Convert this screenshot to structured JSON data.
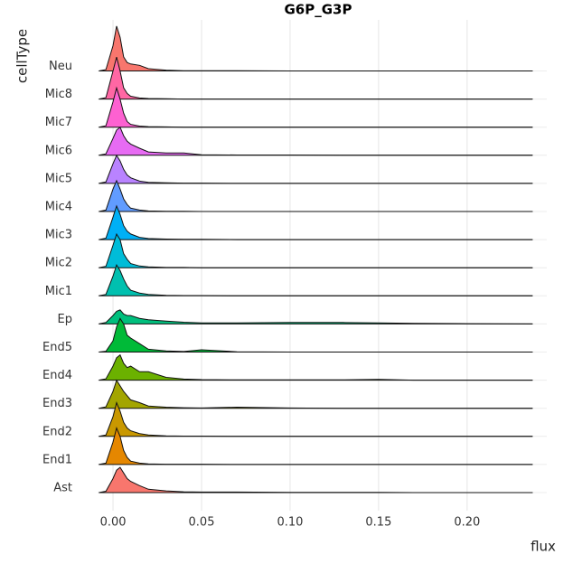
{
  "chart_data": {
    "type": "ridgeline",
    "title": "G6P_G3P",
    "x_label": "flux",
    "y_label": "cellType",
    "categories": [
      "Ast",
      "End1",
      "End2",
      "End3",
      "End4",
      "End5",
      "Ep",
      "Mic1",
      "Mic2",
      "Mic3",
      "Mic4",
      "Mic5",
      "Mic6",
      "Mic7",
      "Mic8",
      "Neu"
    ],
    "x": [
      -0.008,
      -0.004,
      0,
      0.002,
      0.004,
      0.006,
      0.008,
      0.01,
      0.015,
      0.02,
      0.03,
      0.04,
      0.05,
      0.07,
      0.1,
      0.13,
      0.15,
      0.17,
      0.2,
      0.237
    ],
    "series": [
      {
        "color": "#F8766D",
        "values": [
          0,
          0.05,
          0.5,
          0.8,
          0.9,
          0.7,
          0.5,
          0.4,
          0.25,
          0.12,
          0.06,
          0.03,
          0.02,
          0.02,
          0.01,
          0.01,
          0.01,
          0,
          0,
          0
        ]
      },
      {
        "color": "#E58700",
        "values": [
          0,
          0.05,
          0.8,
          1.3,
          1.0,
          0.5,
          0.25,
          0.12,
          0.05,
          0.02,
          0.01,
          0.01,
          0.01,
          0,
          0,
          0,
          0,
          0,
          0,
          0
        ]
      },
      {
        "color": "#C99800",
        "values": [
          0,
          0.05,
          0.7,
          1.2,
          0.9,
          0.5,
          0.3,
          0.2,
          0.1,
          0.05,
          0.02,
          0.01,
          0.01,
          0,
          0,
          0,
          0,
          0,
          0,
          0
        ]
      },
      {
        "color": "#A3A500",
        "values": [
          0,
          0.05,
          0.6,
          1.0,
          0.8,
          0.6,
          0.45,
          0.3,
          0.2,
          0.08,
          0.04,
          0.02,
          0.01,
          0.04,
          0.01,
          0,
          0,
          0,
          0,
          0
        ]
      },
      {
        "color": "#6BB100",
        "values": [
          0,
          0.05,
          0.5,
          0.8,
          0.9,
          0.6,
          0.45,
          0.5,
          0.3,
          0.3,
          0.1,
          0.04,
          0.02,
          0.01,
          0.01,
          0.01,
          0.03,
          0,
          0,
          0
        ]
      },
      {
        "color": "#00BA38",
        "values": [
          0,
          0.03,
          0.4,
          0.9,
          1.2,
          1.0,
          0.6,
          0.5,
          0.3,
          0.1,
          0.04,
          0.02,
          0.08,
          0.01,
          0,
          0,
          0,
          0,
          0,
          0
        ]
      },
      {
        "color": "#00BF7D",
        "values": [
          0,
          0.05,
          0.3,
          0.45,
          0.5,
          0.35,
          0.3,
          0.3,
          0.2,
          0.15,
          0.1,
          0.06,
          0.04,
          0.04,
          0.05,
          0.05,
          0.04,
          0.02,
          0.01,
          0
        ]
      },
      {
        "color": "#00C0AF",
        "values": [
          0,
          0.05,
          0.7,
          1.1,
          0.9,
          0.6,
          0.35,
          0.2,
          0.1,
          0.05,
          0.02,
          0.01,
          0.01,
          0,
          0,
          0,
          0,
          0,
          0,
          0
        ]
      },
      {
        "color": "#00BCD8",
        "values": [
          0,
          0.05,
          0.8,
          1.2,
          1.0,
          0.5,
          0.3,
          0.15,
          0.06,
          0.03,
          0.01,
          0.01,
          0,
          0,
          0,
          0,
          0,
          0,
          0,
          0
        ]
      },
      {
        "color": "#00B0F6",
        "values": [
          0,
          0.05,
          0.8,
          1.2,
          0.9,
          0.5,
          0.3,
          0.2,
          0.08,
          0.04,
          0.02,
          0.01,
          0.01,
          0,
          0,
          0,
          0,
          0,
          0,
          0
        ]
      },
      {
        "color": "#619CFF",
        "values": [
          0,
          0.05,
          0.8,
          1.1,
          0.8,
          0.45,
          0.25,
          0.12,
          0.05,
          0.02,
          0.01,
          0.01,
          0,
          0,
          0,
          0,
          0,
          0,
          0,
          0
        ]
      },
      {
        "color": "#B983FF",
        "values": [
          0,
          0.05,
          0.7,
          1.0,
          0.8,
          0.5,
          0.3,
          0.2,
          0.08,
          0.04,
          0.02,
          0.01,
          0.01,
          0,
          0,
          0,
          0,
          0,
          0,
          0
        ]
      },
      {
        "color": "#E76BF3",
        "values": [
          0,
          0.05,
          0.6,
          0.9,
          1.0,
          0.7,
          0.5,
          0.4,
          0.25,
          0.12,
          0.08,
          0.08,
          0.02,
          0.01,
          0.01,
          0,
          0,
          0,
          0,
          0
        ]
      },
      {
        "color": "#FD61D1",
        "values": [
          0,
          0.05,
          0.9,
          1.4,
          1.0,
          0.5,
          0.2,
          0.1,
          0.04,
          0.02,
          0.01,
          0,
          0,
          0,
          0,
          0,
          0,
          0,
          0,
          0
        ]
      },
      {
        "color": "#FF67A4",
        "values": [
          0,
          0.05,
          1.0,
          1.5,
          1.0,
          0.4,
          0.2,
          0.1,
          0.04,
          0.02,
          0.01,
          0,
          0,
          0,
          0,
          0,
          0,
          0,
          0,
          0
        ]
      },
      {
        "color": "#F8766D",
        "values": [
          0,
          0.05,
          0.9,
          1.6,
          1.2,
          0.5,
          0.3,
          0.25,
          0.2,
          0.08,
          0.03,
          0.01,
          0.01,
          0.01,
          0,
          0,
          0,
          0,
          0,
          0
        ]
      }
    ],
    "xlim": [
      -0.0087,
      0.245
    ],
    "xticks": [
      {
        "value": 0,
        "label": "0.00"
      },
      0.05,
      {
        "value": 0.1,
        "label": "0.10"
      },
      0.15,
      {
        "value": 0.2,
        "label": "0.20"
      }
    ],
    "grid": true
  }
}
